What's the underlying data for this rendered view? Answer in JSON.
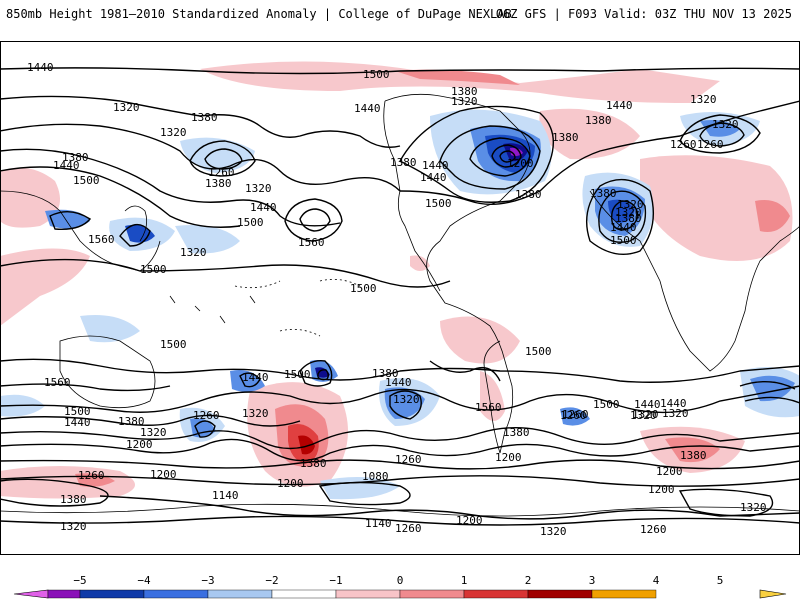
{
  "header": {
    "title_left": "850mb Height 1981–2010 Standardized Anomaly | College of DuPage NEXLAB",
    "title_right": "06Z GFS | F093 Valid: 03Z THU NOV 13 2025"
  },
  "map": {
    "contour_labels": [
      "1440",
      "1500",
      "1380",
      "1320",
      "1440",
      "1380",
      "1320",
      "1440",
      "1380",
      "1320",
      "1260",
      "1320",
      "1440",
      "1380",
      "1500",
      "1380",
      "1320",
      "1440",
      "1560",
      "1560",
      "1500",
      "1380",
      "1500",
      "1440",
      "1380",
      "1380",
      "1320",
      "1200",
      "1380",
      "1320",
      "1260",
      "1320",
      "1380",
      "1440",
      "1500",
      "1440",
      "1320",
      "1260",
      "1500",
      "1500",
      "1500",
      "1560",
      "1440",
      "1500",
      "1380",
      "1440",
      "1320",
      "1500",
      "1260",
      "1320",
      "1200",
      "1380",
      "1440",
      "1320",
      "1260",
      "1560",
      "1500",
      "1440",
      "1380",
      "1320",
      "1200",
      "1260",
      "1320",
      "1260",
      "1380",
      "1200",
      "1140",
      "1200",
      "1080",
      "1260",
      "1200",
      "1140",
      "1320",
      "1500",
      "1440",
      "1320",
      "1260",
      "1380",
      "1200",
      "1200",
      "1260",
      "1320",
      "1320",
      "1380"
    ],
    "colors": {
      "anom_neg1": "#c6ddf7",
      "anom_neg2": "#5a8ee6",
      "anom_neg3": "#1a4cc4",
      "anom_neg4": "#0d0d8c",
      "anom_neg5": "#9018c8",
      "anom_pos1": "#f7c8cc",
      "anom_pos2": "#f08a8e",
      "anom_pos3": "#e04040",
      "anom_pos4": "#b40000"
    }
  },
  "legend": {
    "tick_labels": [
      "−5",
      "−4",
      "−3",
      "−2",
      "−1",
      "0",
      "1",
      "2",
      "3",
      "4",
      "5"
    ],
    "colors": [
      "#e060e8",
      "#8a10b8",
      "#0f3aa8",
      "#3a6fe0",
      "#a8c8f0",
      "#ffffff",
      "#f8c4c8",
      "#f08a8e",
      "#d83434",
      "#a00000",
      "#f0a000",
      "#f8d040"
    ]
  }
}
